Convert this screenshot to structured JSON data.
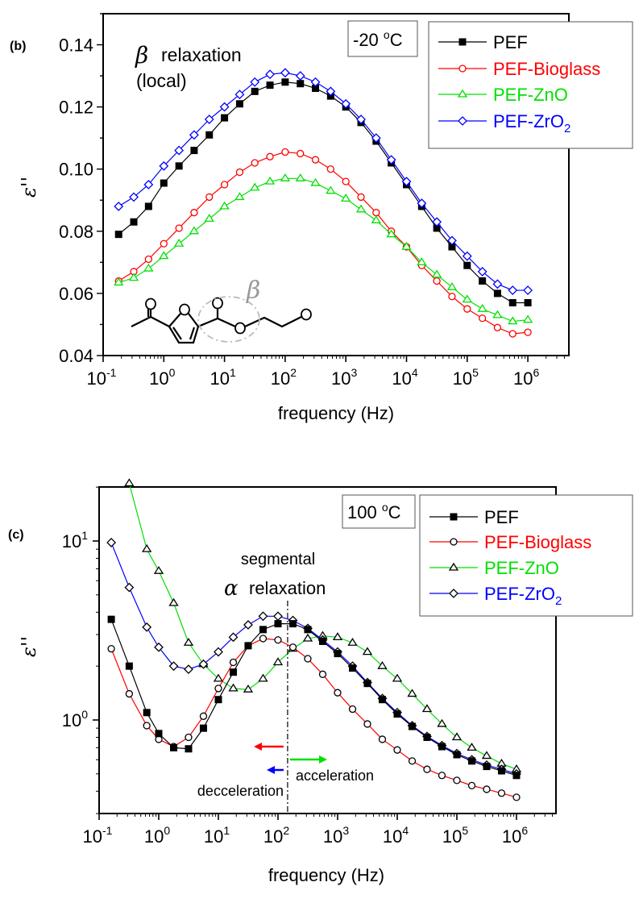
{
  "colors": {
    "PEF": "#000000",
    "PEF-Bioglass": "#ff0000",
    "PEF-ZnO": "#00e000",
    "PEF-ZrO2": "#0000ff",
    "annotation_gray": "#999999"
  },
  "chart_data": [
    {
      "panel_label": "(b)",
      "type": "line",
      "xscale": "log",
      "yscale": "linear",
      "xlabel": "frequency (Hz)",
      "ylabel": "ε''",
      "xlim": [
        0.1,
        5000000
      ],
      "ylim": [
        0.04,
        0.15
      ],
      "x_ticks": [
        {
          "base": "10",
          "exp": "-1"
        },
        {
          "base": "10",
          "exp": "0"
        },
        {
          "base": "10",
          "exp": "1"
        },
        {
          "base": "10",
          "exp": "2"
        },
        {
          "base": "10",
          "exp": "3"
        },
        {
          "base": "10",
          "exp": "4"
        },
        {
          "base": "10",
          "exp": "5"
        },
        {
          "base": "10",
          "exp": "6"
        }
      ],
      "y_ticks": [
        "0.04",
        "0.06",
        "0.08",
        "0.10",
        "0.12",
        "0.14"
      ],
      "temperature": {
        "value": "-20 ",
        "deg": "o",
        "unit": "C"
      },
      "annotations": {
        "beta_symbol": "β",
        "relaxation": "relaxation",
        "local": "(local)",
        "structure_beta": "β"
      },
      "legend": [
        {
          "name": "PEF"
        },
        {
          "name": "PEF-Bioglass"
        },
        {
          "name": "PEF-ZnO"
        },
        {
          "name": "PEF-ZrO",
          "sub": "2"
        }
      ],
      "x": [
        0.18,
        0.32,
        0.56,
        1,
        1.78,
        3.16,
        5.62,
        10,
        17.8,
        31.6,
        56.2,
        100,
        178,
        316,
        562,
        1000,
        1780,
        3160,
        5620,
        10000,
        17800,
        31600,
        56200,
        100000,
        178000,
        316000,
        562000,
        1000000
      ],
      "series": [
        {
          "name": "PEF",
          "marker": "square",
          "values": [
            0.079,
            0.083,
            0.088,
            0.0955,
            0.101,
            0.106,
            0.111,
            0.1165,
            0.121,
            0.125,
            0.127,
            0.128,
            0.1275,
            0.126,
            0.1235,
            0.12,
            0.115,
            0.109,
            0.102,
            0.095,
            0.088,
            0.081,
            0.075,
            0.069,
            0.064,
            0.06,
            0.057,
            0.057
          ]
        },
        {
          "name": "PEF-Bioglass",
          "marker": "circle",
          "values": [
            0.064,
            0.067,
            0.071,
            0.076,
            0.081,
            0.086,
            0.091,
            0.095,
            0.099,
            0.102,
            0.104,
            0.1055,
            0.105,
            0.103,
            0.1,
            0.096,
            0.091,
            0.086,
            0.08,
            0.075,
            0.069,
            0.064,
            0.059,
            0.055,
            0.052,
            0.049,
            0.047,
            0.0475
          ]
        },
        {
          "name": "PEF-ZnO",
          "marker": "triangle",
          "values": [
            0.0635,
            0.065,
            0.068,
            0.072,
            0.076,
            0.08,
            0.084,
            0.088,
            0.091,
            0.094,
            0.096,
            0.097,
            0.097,
            0.0955,
            0.093,
            0.0905,
            0.087,
            0.0835,
            0.079,
            0.075,
            0.07,
            0.066,
            0.062,
            0.058,
            0.055,
            0.053,
            0.051,
            0.0515
          ]
        },
        {
          "name": "PEF-ZrO2",
          "marker": "diamond",
          "values": [
            0.088,
            0.091,
            0.095,
            0.101,
            0.106,
            0.111,
            0.116,
            0.12,
            0.124,
            0.128,
            0.1305,
            0.131,
            0.13,
            0.128,
            0.125,
            0.121,
            0.116,
            0.11,
            0.103,
            0.096,
            0.089,
            0.083,
            0.077,
            0.072,
            0.067,
            0.063,
            0.061,
            0.061
          ]
        }
      ]
    },
    {
      "panel_label": "(c)",
      "type": "line",
      "xscale": "log",
      "yscale": "log",
      "xlabel": "frequency (Hz)",
      "ylabel": "ε''",
      "xlim": [
        0.1,
        4600000
      ],
      "ylim": [
        0.3,
        20
      ],
      "x_ticks": [
        {
          "base": "10",
          "exp": "-1"
        },
        {
          "base": "10",
          "exp": "0"
        },
        {
          "base": "10",
          "exp": "1"
        },
        {
          "base": "10",
          "exp": "2"
        },
        {
          "base": "10",
          "exp": "3"
        },
        {
          "base": "10",
          "exp": "4"
        },
        {
          "base": "10",
          "exp": "5"
        },
        {
          "base": "10",
          "exp": "6"
        }
      ],
      "y_ticks": [
        {
          "base": "10",
          "exp": "0"
        },
        {
          "base": "10",
          "exp": "1"
        }
      ],
      "temperature": {
        "value": "100 ",
        "deg": "o",
        "unit": "C"
      },
      "annotations": {
        "segmental": "segmental",
        "alpha_symbol": "α",
        "relaxation": "relaxation",
        "acceleration": "acceleration",
        "decceleration": "decceleration",
        "reference_frequency": 145
      },
      "legend": [
        {
          "name": "PEF"
        },
        {
          "name": "PEF-Bioglass"
        },
        {
          "name": "PEF-ZnO"
        },
        {
          "name": "PEF-ZrO",
          "sub": "2"
        }
      ],
      "x": [
        0.16,
        0.32,
        0.63,
        1,
        1.78,
        3.16,
        5.62,
        10,
        17.8,
        31.6,
        56.2,
        100,
        178,
        316,
        562,
        1000,
        1780,
        3160,
        5620,
        10000,
        17800,
        31600,
        56200,
        100000,
        178000,
        316000,
        562000,
        1000000
      ],
      "series": [
        {
          "name": "PEF",
          "marker": "square",
          "values": [
            3.65,
            2.0,
            1.1,
            0.84,
            0.7,
            0.69,
            0.9,
            1.3,
            1.85,
            2.6,
            3.2,
            3.45,
            3.45,
            3.2,
            2.75,
            2.35,
            1.95,
            1.6,
            1.3,
            1.08,
            0.92,
            0.8,
            0.71,
            0.64,
            0.59,
            0.55,
            0.52,
            0.49
          ]
        },
        {
          "name": "PEF-Bioglass",
          "marker": "circle",
          "values": [
            2.5,
            1.4,
            0.93,
            0.78,
            0.71,
            0.8,
            1.05,
            1.5,
            2.1,
            2.6,
            2.85,
            2.8,
            2.55,
            2.2,
            1.8,
            1.42,
            1.15,
            0.95,
            0.78,
            0.68,
            0.59,
            0.53,
            0.49,
            0.46,
            0.43,
            0.41,
            0.39,
            0.37
          ]
        },
        {
          "name": "PEF-ZnO",
          "marker": "triangle",
          "values": [
            null,
            21,
            9.0,
            6.8,
            4.5,
            2.7,
            2.05,
            1.7,
            1.5,
            1.48,
            1.7,
            2.1,
            2.5,
            2.85,
            2.95,
            2.9,
            2.7,
            2.4,
            2.0,
            1.7,
            1.4,
            1.15,
            0.95,
            0.8,
            0.7,
            0.63,
            0.57,
            0.53
          ]
        },
        {
          "name": "PEF-ZrO2",
          "marker": "diamond",
          "values": [
            9.8,
            5.5,
            3.3,
            2.55,
            2.0,
            1.92,
            2.05,
            2.4,
            2.9,
            3.4,
            3.8,
            3.8,
            3.6,
            3.25,
            2.8,
            2.4,
            2.0,
            1.62,
            1.32,
            1.1,
            0.93,
            0.81,
            0.72,
            0.65,
            0.6,
            0.56,
            0.53,
            0.5
          ]
        }
      ]
    }
  ]
}
